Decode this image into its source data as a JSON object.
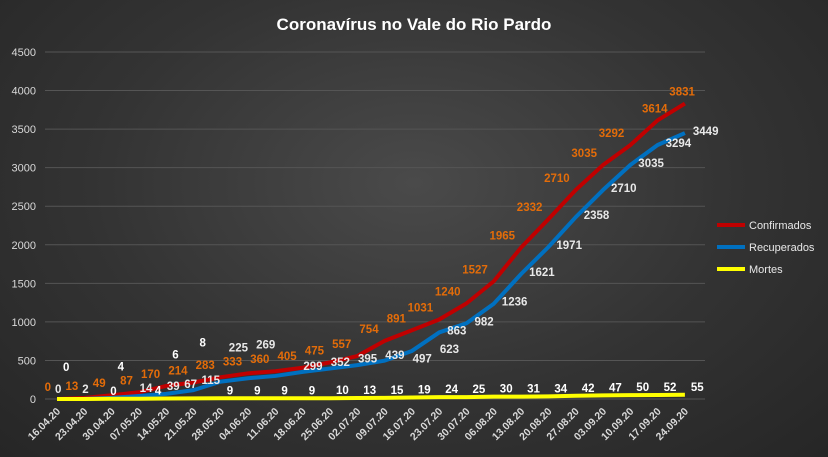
{
  "chart_data": {
    "type": "line",
    "title": "Coronavírus  no Vale do Rio Pardo",
    "xlabel": "",
    "ylabel": "",
    "ylim": [
      0,
      4500
    ],
    "yticks": [
      0,
      500,
      1000,
      1500,
      2000,
      2500,
      3000,
      3500,
      4000,
      4500
    ],
    "grid": true,
    "legend_position": "right",
    "categories": [
      "16.04.20",
      "23.04.20",
      "30.04.20",
      "07.05.20",
      "14.05.20",
      "21.05.20",
      "28.05.20",
      "04.06.20",
      "11.06.20",
      "18.06.20",
      "25.06.20",
      "02.07.20",
      "09.07.20",
      "16.07.20",
      "23.07.20",
      "30.07.20",
      "06.08.20",
      "13.08.20",
      "20.08.20",
      "27.08.20",
      "03.09.20",
      "10.09.20",
      "17.09.20",
      "24.09.20"
    ],
    "series": [
      {
        "name": "Confirmados",
        "color": "#c00000",
        "label_color": "#e36c09",
        "values": [
          0,
          13,
          49,
          87,
          170,
          214,
          283,
          333,
          360,
          405,
          475,
          557,
          754,
          891,
          1031,
          1240,
          1527,
          1965,
          2332,
          2710,
          3035,
          3292,
          3614,
          3831
        ]
      },
      {
        "name": "Recuperados",
        "color": "#0070c0",
        "label_color": "#e8e8e8",
        "values": [
          0,
          2,
          14,
          39,
          67,
          115,
          225,
          269,
          299,
          352,
          395,
          439,
          497,
          623,
          863,
          982,
          1236,
          1621,
          1971,
          2358,
          2710,
          3035,
          3294,
          3449
        ]
      },
      {
        "name": "Mortes",
        "color": "#ffff00",
        "label_color": "#ffffff",
        "values": [
          0,
          0,
          4,
          4,
          6,
          8,
          9,
          9,
          9,
          9,
          10,
          13,
          15,
          19,
          24,
          25,
          30,
          31,
          34,
          42,
          47,
          50,
          52,
          55
        ]
      }
    ]
  }
}
